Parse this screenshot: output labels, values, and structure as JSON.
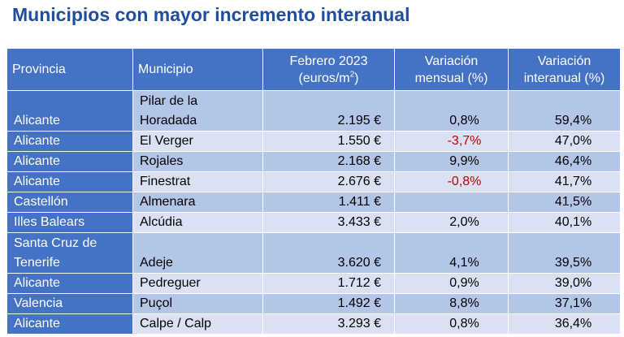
{
  "title": "Municipios con mayor incremento interanual",
  "headers": {
    "provincia": "Provincia",
    "municipio": "Municipio",
    "precio_line1": "Febrero 2023",
    "precio_line2": "(euros/m",
    "precio_sup": "2",
    "precio_close": ")",
    "mensual_line1": "Variación",
    "mensual_line2": "mensual (%)",
    "interanual_line1": "Variación",
    "interanual_line2": "interanual (%)"
  },
  "colors": {
    "header": "#4472c4",
    "row_dark": "#b4c6e7",
    "row_light": "#d9e1f2",
    "negative": "#c00000",
    "title": "#1f4e9c"
  },
  "rows": [
    {
      "provincia": "Alicante",
      "municipio": "Pilar de la Horadada",
      "precio": "2.195 €",
      "mensual": "0,8%",
      "interanual": "59,4%"
    },
    {
      "provincia": "Alicante",
      "municipio": "El Verger",
      "precio": "1.550 €",
      "mensual": "-3,7%",
      "interanual": "47,0%"
    },
    {
      "provincia": "Alicante",
      "municipio": "Rojales",
      "precio": "2.168 €",
      "mensual": "9,9%",
      "interanual": "46,4%"
    },
    {
      "provincia": "Alicante",
      "municipio": "Finestrat",
      "precio": "2.676 €",
      "mensual": "-0,8%",
      "interanual": "41,7%"
    },
    {
      "provincia": "Castellón",
      "municipio": "Almenara",
      "precio": "1.411 €",
      "mensual": "",
      "interanual": "41,5%"
    },
    {
      "provincia": "Illes Balears",
      "municipio": "Alcúdia",
      "precio": "3.433 €",
      "mensual": "2,0%",
      "interanual": "40,1%"
    },
    {
      "provincia": "Santa Cruz de Tenerife",
      "municipio": "Adeje",
      "precio": "3.620 €",
      "mensual": "4,1%",
      "interanual": "39,5%"
    },
    {
      "provincia": "Alicante",
      "municipio": "Pedreguer",
      "precio": "1.712 €",
      "mensual": "0,9%",
      "interanual": "39,0%"
    },
    {
      "provincia": "Valencia",
      "municipio": "Puçol",
      "precio": "1.492 €",
      "mensual": "8,8%",
      "interanual": "37,1%"
    },
    {
      "provincia": "Alicante",
      "municipio": "Calpe / Calp",
      "precio": "3.293 €",
      "mensual": "0,8%",
      "interanual": "36,4%"
    }
  ]
}
